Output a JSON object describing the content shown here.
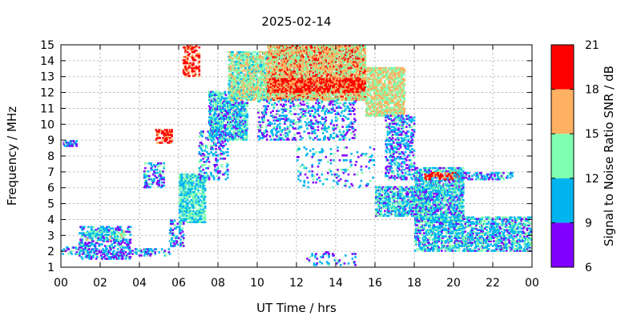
{
  "chart_data": {
    "type": "heatmap",
    "title": "2025-02-14",
    "xlabel": "UT Time / hrs",
    "ylabel": "Frequency / MHz",
    "xlim": [
      0,
      24
    ],
    "ylim": [
      1,
      15
    ],
    "x_ticks": [
      "00",
      "02",
      "04",
      "06",
      "08",
      "10",
      "12",
      "14",
      "16",
      "18",
      "20",
      "22",
      "00"
    ],
    "y_ticks": [
      "1",
      "2",
      "3",
      "4",
      "5",
      "6",
      "7",
      "8",
      "9",
      "10",
      "11",
      "12",
      "13",
      "14",
      "15"
    ],
    "grid": true,
    "colorbar": {
      "label": "Signal to Noise Ratio SNR / dB",
      "min": 6,
      "max": 21,
      "ticks": [
        "6",
        "9",
        "12",
        "15",
        "18",
        "21"
      ],
      "bands": [
        {
          "from": 6,
          "to": 9,
          "color": "#8000ff"
        },
        {
          "from": 9,
          "to": 12,
          "color": "#00b4f0"
        },
        {
          "from": 12,
          "to": 15,
          "color": "#80ffb0"
        },
        {
          "from": 15,
          "to": 18,
          "color": "#ffb060"
        },
        {
          "from": 18,
          "to": 21,
          "color": "#ff0000"
        }
      ]
    },
    "regions": [
      {
        "t": [
          0.0,
          1.0
        ],
        "f": [
          1.8,
          2.3
        ],
        "snr": 10,
        "density": 0.25
      },
      {
        "t": [
          0.1,
          0.8
        ],
        "f": [
          8.6,
          8.9
        ],
        "snr": 10,
        "density": 0.5
      },
      {
        "t": [
          0.9,
          3.5
        ],
        "f": [
          1.5,
          3.6
        ],
        "snr": 10,
        "density": 0.35
      },
      {
        "t": [
          1.2,
          3.2
        ],
        "f": [
          2.7,
          3.3
        ],
        "snr": 13,
        "density": 0.3
      },
      {
        "t": [
          3.5,
          5.5
        ],
        "f": [
          1.7,
          2.2
        ],
        "snr": 10,
        "density": 0.3
      },
      {
        "t": [
          4.2,
          5.2
        ],
        "f": [
          6.0,
          7.5
        ],
        "snr": 10,
        "density": 0.3
      },
      {
        "t": [
          4.8,
          5.6
        ],
        "f": [
          8.8,
          9.6
        ],
        "snr": 19,
        "density": 0.4
      },
      {
        "t": [
          5.5,
          6.2
        ],
        "f": [
          2.3,
          4.0
        ],
        "snr": 10,
        "density": 0.25
      },
      {
        "t": [
          6.0,
          7.3
        ],
        "f": [
          3.8,
          6.8
        ],
        "snr": 12,
        "density": 0.55
      },
      {
        "t": [
          6.2,
          7.0
        ],
        "f": [
          13.0,
          15.0
        ],
        "snr": 19,
        "density": 0.35
      },
      {
        "t": [
          7.0,
          8.5
        ],
        "f": [
          6.5,
          9.5
        ],
        "snr": 10,
        "density": 0.2
      },
      {
        "t": [
          7.5,
          9.5
        ],
        "f": [
          9.0,
          12.0
        ],
        "snr": 11,
        "density": 0.55
      },
      {
        "t": [
          8.5,
          10.5
        ],
        "f": [
          11.5,
          14.5
        ],
        "snr": 14,
        "density": 0.6
      },
      {
        "t": [
          10.5,
          15.5
        ],
        "f": [
          11.5,
          15.0
        ],
        "snr": 16,
        "density": 0.75
      },
      {
        "t": [
          10.5,
          15.5
        ],
        "f": [
          12.0,
          12.8
        ],
        "snr": 19,
        "density": 0.6
      },
      {
        "t": [
          10.0,
          15.0
        ],
        "f": [
          9.0,
          11.5
        ],
        "snr": 10,
        "density": 0.2
      },
      {
        "t": [
          15.5,
          17.5
        ],
        "f": [
          10.5,
          13.5
        ],
        "snr": 15,
        "density": 0.6
      },
      {
        "t": [
          16.5,
          18.0
        ],
        "f": [
          6.5,
          10.5
        ],
        "snr": 10,
        "density": 0.3
      },
      {
        "t": [
          16.0,
          18.5
        ],
        "f": [
          4.2,
          6.0
        ],
        "snr": 11,
        "density": 0.45
      },
      {
        "t": [
          18.0,
          20.5
        ],
        "f": [
          3.8,
          7.2
        ],
        "snr": 11,
        "density": 0.55
      },
      {
        "t": [
          18.5,
          20.3
        ],
        "f": [
          6.5,
          6.9
        ],
        "snr": 19,
        "density": 0.4
      },
      {
        "t": [
          20.0,
          23.0
        ],
        "f": [
          6.5,
          6.9
        ],
        "snr": 10,
        "density": 0.35
      },
      {
        "t": [
          18.0,
          24.0
        ],
        "f": [
          2.0,
          4.2
        ],
        "snr": 11,
        "density": 0.45
      },
      {
        "t": [
          12.5,
          15.0
        ],
        "f": [
          1.0,
          2.0
        ],
        "snr": 10,
        "density": 0.1
      },
      {
        "t": [
          12.0,
          16.0
        ],
        "f": [
          6.0,
          8.5
        ],
        "snr": 10,
        "density": 0.08
      }
    ]
  }
}
